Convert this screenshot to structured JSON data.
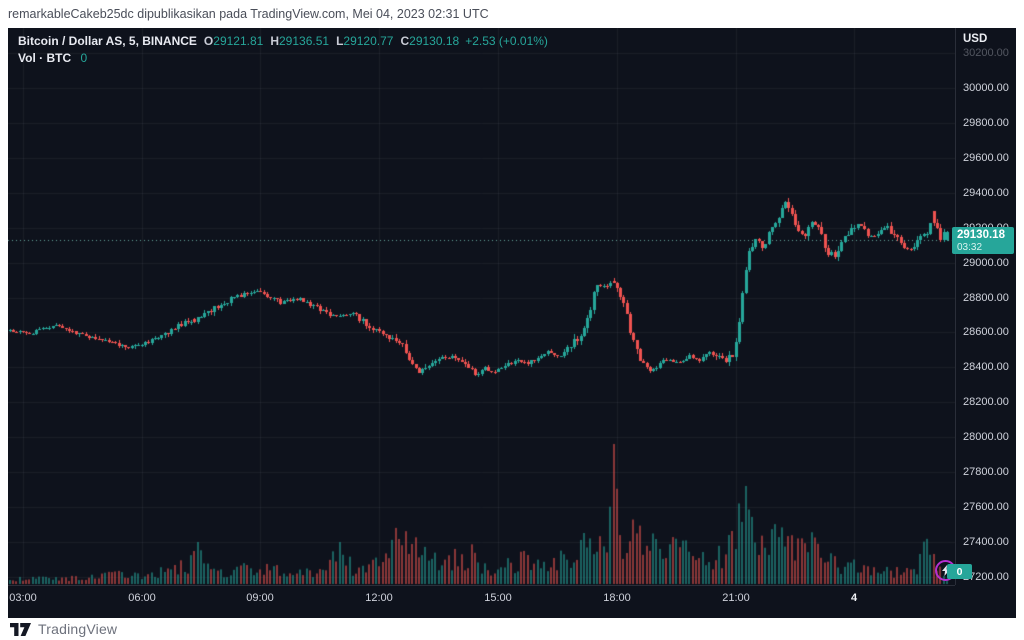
{
  "header": {
    "attribution": "remarkableCakeb25dc dipublikasikan pada TradingView.com, Mei 04, 2023 02:31 UTC"
  },
  "legend": {
    "title": "Bitcoin / Dollar AS, 5, BINANCE",
    "o_label": "O",
    "o_value": "29121.81",
    "h_label": "H",
    "h_value": "29136.51",
    "l_label": "L",
    "l_value": "29120.77",
    "c_label": "C",
    "c_value": "29130.18",
    "change": "+2.53 (+0.01%)",
    "vol_label": "Vol · BTC",
    "vol_value": "0"
  },
  "axis": {
    "currency_label": "USD",
    "last_price": "29130.18",
    "countdown": "03:32",
    "volume_value": "0"
  },
  "footer": {
    "brand": "TradingView"
  },
  "colors": {
    "panel_bg": "#0e121c",
    "up": "#26a69a",
    "down": "#ef5350",
    "grid": "rgba(255,255,255,0.05)",
    "axis_text": "#cfd2db",
    "badge_bg": "#26a69a",
    "last_price_line": "rgba(110,182,170,0.9)",
    "accent_purple": "#b62fd0"
  },
  "chart_data": {
    "type": "candlestick",
    "title": "Bitcoin / Dollar AS, 5, BINANCE",
    "symbol": "Bitcoin / Dollar AS",
    "interval_minutes": 5,
    "exchange": "BINANCE",
    "legend_ohlc": {
      "open": 29121.81,
      "high": 29136.51,
      "low": 29120.77,
      "close": 29130.18,
      "change": 2.53,
      "change_pct": 0.01
    },
    "last_price": 29130.18,
    "candle_count": 285,
    "ylim": [
      27150,
      30300
    ],
    "grid": true,
    "y_axis_labels": [
      {
        "label": "30200.00",
        "price": 30200,
        "dim": true
      },
      {
        "label": "30000.00",
        "price": 30000
      },
      {
        "label": "29800.00",
        "price": 29800
      },
      {
        "label": "29600.00",
        "price": 29600
      },
      {
        "label": "29400.00",
        "price": 29400
      },
      {
        "label": "29200.00",
        "price": 29200
      },
      {
        "label": "29000.00",
        "price": 29000
      },
      {
        "label": "28800.00",
        "price": 28800
      },
      {
        "label": "28600.00",
        "price": 28600
      },
      {
        "label": "28400.00",
        "price": 28400
      },
      {
        "label": "28200.00",
        "price": 28200
      },
      {
        "label": "28000.00",
        "price": 28000
      },
      {
        "label": "27800.00",
        "price": 27800
      },
      {
        "label": "27600.00",
        "price": 27600
      },
      {
        "label": "27400.00",
        "price": 27400
      },
      {
        "label": "27200.00",
        "price": 27200
      }
    ],
    "x_axis_labels": [
      {
        "label": "03:00",
        "i": 4
      },
      {
        "label": "06:00",
        "i": 40
      },
      {
        "label": "09:00",
        "i": 76
      },
      {
        "label": "12:00",
        "i": 112
      },
      {
        "label": "15:00",
        "i": 148
      },
      {
        "label": "18:00",
        "i": 184
      },
      {
        "label": "21:00",
        "i": 220
      },
      {
        "label": "4",
        "i": 256,
        "bold": true
      }
    ],
    "price_keypoints": [
      [
        0,
        28615
      ],
      [
        6,
        28595
      ],
      [
        10,
        28620
      ],
      [
        14,
        28640
      ],
      [
        18,
        28605
      ],
      [
        24,
        28575
      ],
      [
        30,
        28545
      ],
      [
        36,
        28510
      ],
      [
        40,
        28530
      ],
      [
        46,
        28580
      ],
      [
        52,
        28650
      ],
      [
        58,
        28690
      ],
      [
        64,
        28760
      ],
      [
        68,
        28800
      ],
      [
        72,
        28830
      ],
      [
        75,
        28845
      ],
      [
        78,
        28810
      ],
      [
        82,
        28770
      ],
      [
        88,
        28795
      ],
      [
        93,
        28745
      ],
      [
        98,
        28690
      ],
      [
        104,
        28705
      ],
      [
        108,
        28645
      ],
      [
        113,
        28600
      ],
      [
        118,
        28545
      ],
      [
        121,
        28450
      ],
      [
        124,
        28365
      ],
      [
        127,
        28420
      ],
      [
        131,
        28455
      ],
      [
        135,
        28465
      ],
      [
        138,
        28420
      ],
      [
        141,
        28355
      ],
      [
        144,
        28395
      ],
      [
        147,
        28365
      ],
      [
        150,
        28420
      ],
      [
        154,
        28435
      ],
      [
        157,
        28420
      ],
      [
        160,
        28450
      ],
      [
        163,
        28485
      ],
      [
        167,
        28465
      ],
      [
        170,
        28520
      ],
      [
        174,
        28610
      ],
      [
        178,
        28880
      ],
      [
        181,
        28855
      ],
      [
        183,
        28900
      ],
      [
        185,
        28810
      ],
      [
        187,
        28690
      ],
      [
        189,
        28540
      ],
      [
        191,
        28430
      ],
      [
        194,
        28375
      ],
      [
        197,
        28425
      ],
      [
        200,
        28445
      ],
      [
        203,
        28425
      ],
      [
        206,
        28465
      ],
      [
        209,
        28445
      ],
      [
        212,
        28485
      ],
      [
        215,
        28455
      ],
      [
        217,
        28435
      ],
      [
        219,
        28460
      ],
      [
        221,
        28640
      ],
      [
        222,
        28830
      ],
      [
        224,
        29080
      ],
      [
        226,
        29140
      ],
      [
        228,
        29090
      ],
      [
        230,
        29160
      ],
      [
        232,
        29240
      ],
      [
        235,
        29340
      ],
      [
        237,
        29260
      ],
      [
        239,
        29180
      ],
      [
        241,
        29160
      ],
      [
        243,
        29240
      ],
      [
        245,
        29190
      ],
      [
        248,
        29060
      ],
      [
        250,
        29040
      ],
      [
        252,
        29120
      ],
      [
        254,
        29165
      ],
      [
        256,
        29210
      ],
      [
        258,
        29225
      ],
      [
        260,
        29160
      ],
      [
        262,
        29150
      ],
      [
        264,
        29185
      ],
      [
        266,
        29200
      ],
      [
        268,
        29150
      ],
      [
        270,
        29110
      ],
      [
        272,
        29070
      ],
      [
        274,
        29090
      ],
      [
        276,
        29150
      ],
      [
        278,
        29165
      ],
      [
        280,
        29290
      ],
      [
        281,
        29190
      ],
      [
        282,
        29150
      ],
      [
        283,
        29165
      ],
      [
        284,
        29130.18
      ]
    ],
    "volume_keypoints": [
      [
        0,
        5
      ],
      [
        8,
        6
      ],
      [
        16,
        5
      ],
      [
        24,
        7
      ],
      [
        32,
        9
      ],
      [
        40,
        9
      ],
      [
        46,
        12
      ],
      [
        50,
        20
      ],
      [
        54,
        16
      ],
      [
        56,
        33
      ],
      [
        58,
        25
      ],
      [
        62,
        12
      ],
      [
        66,
        10
      ],
      [
        70,
        15
      ],
      [
        76,
        10
      ],
      [
        80,
        18
      ],
      [
        86,
        9
      ],
      [
        92,
        12
      ],
      [
        96,
        16
      ],
      [
        100,
        42
      ],
      [
        104,
        13
      ],
      [
        108,
        17
      ],
      [
        112,
        22
      ],
      [
        116,
        32
      ],
      [
        118,
        45
      ],
      [
        121,
        38
      ],
      [
        124,
        34
      ],
      [
        128,
        22
      ],
      [
        132,
        18
      ],
      [
        136,
        26
      ],
      [
        140,
        28
      ],
      [
        144,
        18
      ],
      [
        148,
        15
      ],
      [
        152,
        18
      ],
      [
        156,
        23
      ],
      [
        160,
        26
      ],
      [
        164,
        20
      ],
      [
        168,
        28
      ],
      [
        172,
        32
      ],
      [
        176,
        42
      ],
      [
        178,
        55
      ],
      [
        180,
        48
      ],
      [
        182,
        65
      ],
      [
        183,
        140
      ],
      [
        184,
        70
      ],
      [
        186,
        48
      ],
      [
        188,
        58
      ],
      [
        190,
        45
      ],
      [
        193,
        32
      ],
      [
        196,
        36
      ],
      [
        199,
        28
      ],
      [
        202,
        38
      ],
      [
        205,
        30
      ],
      [
        208,
        25
      ],
      [
        211,
        30
      ],
      [
        214,
        26
      ],
      [
        217,
        30
      ],
      [
        220,
        42
      ],
      [
        222,
        70
      ],
      [
        223,
        98
      ],
      [
        225,
        52
      ],
      [
        227,
        42
      ],
      [
        229,
        46
      ],
      [
        231,
        56
      ],
      [
        233,
        46
      ],
      [
        235,
        60
      ],
      [
        237,
        42
      ],
      [
        239,
        35
      ],
      [
        241,
        30
      ],
      [
        243,
        36
      ],
      [
        245,
        28
      ],
      [
        247,
        30
      ],
      [
        249,
        23
      ],
      [
        251,
        18
      ],
      [
        253,
        21
      ],
      [
        255,
        16
      ],
      [
        257,
        19
      ],
      [
        259,
        13
      ],
      [
        261,
        15
      ],
      [
        263,
        11
      ],
      [
        265,
        13
      ],
      [
        267,
        10
      ],
      [
        269,
        12
      ],
      [
        271,
        10
      ],
      [
        273,
        14
      ],
      [
        275,
        13
      ],
      [
        277,
        30
      ],
      [
        279,
        33
      ],
      [
        281,
        22
      ],
      [
        282,
        14
      ],
      [
        283,
        8
      ],
      [
        284,
        3
      ]
    ],
    "volume_spikes": [
      [
        56,
        33
      ],
      [
        100,
        42
      ],
      [
        118,
        45
      ],
      [
        122,
        40
      ],
      [
        183,
        140
      ],
      [
        223,
        98
      ],
      [
        280,
        30
      ]
    ],
    "force_dir": {
      "56": "down",
      "100": "up",
      "118": "down",
      "122": "down",
      "183": "down",
      "185": "down",
      "187": "down",
      "189": "down",
      "221": "up",
      "222": "up",
      "224": "up",
      "226": "up",
      "232": "up",
      "234": "up",
      "236": "down",
      "280": "down",
      "284": "up"
    }
  }
}
